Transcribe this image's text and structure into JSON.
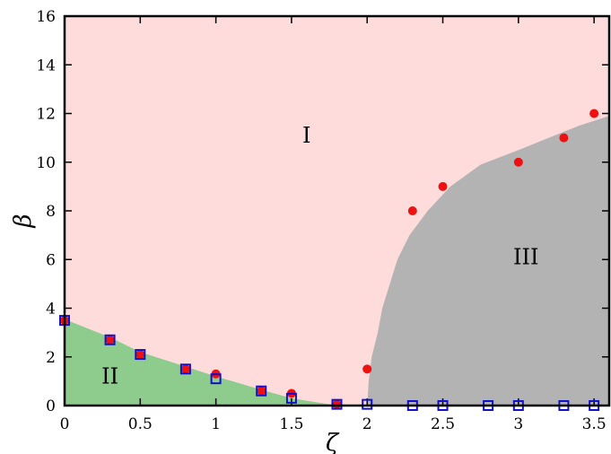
{
  "chart_data": {
    "type": "scatter",
    "xlabel": "ζ",
    "ylabel": "β",
    "xlim": [
      0,
      3.6
    ],
    "ylim": [
      0,
      16
    ],
    "x_ticks": [
      0,
      0.5,
      1,
      1.5,
      2,
      2.5,
      3,
      3.5
    ],
    "x_tick_labels": [
      "0",
      "0.5",
      "1",
      "1.5",
      "2",
      "2.5",
      "3",
      "3.5"
    ],
    "y_ticks": [
      0,
      2,
      4,
      6,
      8,
      10,
      12,
      14,
      16
    ],
    "y_tick_labels": [
      "0",
      "2",
      "4",
      "6",
      "8",
      "10",
      "12",
      "14",
      "16"
    ],
    "grid": false,
    "regions": [
      {
        "label": "I",
        "color": "#ffdcdc",
        "label_at": [
          1.6,
          10.8
        ]
      },
      {
        "label": "II",
        "color": "#8dcc8d",
        "label_at": [
          0.3,
          0.9
        ],
        "boundary": [
          [
            0,
            3.55
          ],
          [
            0.3,
            2.8
          ],
          [
            0.5,
            2.2
          ],
          [
            0.8,
            1.6
          ],
          [
            1.0,
            1.2
          ],
          [
            1.3,
            0.65
          ],
          [
            1.5,
            0.3
          ],
          [
            1.8,
            0
          ]
        ]
      },
      {
        "label": "III",
        "color": "#b3b3b3",
        "label_at": [
          3.05,
          5.8
        ],
        "boundary": [
          [
            2.0,
            0
          ],
          [
            2.01,
            1.0
          ],
          [
            2.03,
            2.0
          ],
          [
            2.07,
            3.0
          ],
          [
            2.1,
            4.0
          ],
          [
            2.15,
            5.0
          ],
          [
            2.2,
            6.0
          ],
          [
            2.28,
            7.0
          ],
          [
            2.4,
            8.0
          ],
          [
            2.55,
            9.0
          ],
          [
            2.75,
            9.9
          ],
          [
            3.0,
            10.5
          ],
          [
            3.2,
            11.0
          ],
          [
            3.4,
            11.5
          ],
          [
            3.6,
            11.9
          ]
        ]
      }
    ],
    "series": [
      {
        "marker": "filled-circle",
        "color": "#ee1111",
        "x": [
          0,
          0.3,
          0.5,
          0.8,
          1.0,
          1.3,
          1.5,
          1.8,
          2.0,
          2.3,
          2.5,
          3.0,
          3.3,
          3.5
        ],
        "y": [
          3.5,
          2.7,
          2.1,
          1.5,
          1.3,
          0.6,
          0.5,
          0.05,
          1.5,
          8.0,
          9.0,
          10.0,
          11.0,
          12.0
        ]
      },
      {
        "marker": "open-square",
        "color": "#1111cc",
        "x": [
          0,
          0.3,
          0.5,
          0.8,
          1.0,
          1.3,
          1.5,
          1.8,
          2.0,
          2.3,
          2.5,
          2.8,
          3.0,
          3.3,
          3.5
        ],
        "y": [
          3.5,
          2.7,
          2.1,
          1.5,
          1.1,
          0.6,
          0.3,
          0.05,
          0.05,
          0,
          0,
          0,
          0,
          0,
          0
        ]
      }
    ]
  }
}
